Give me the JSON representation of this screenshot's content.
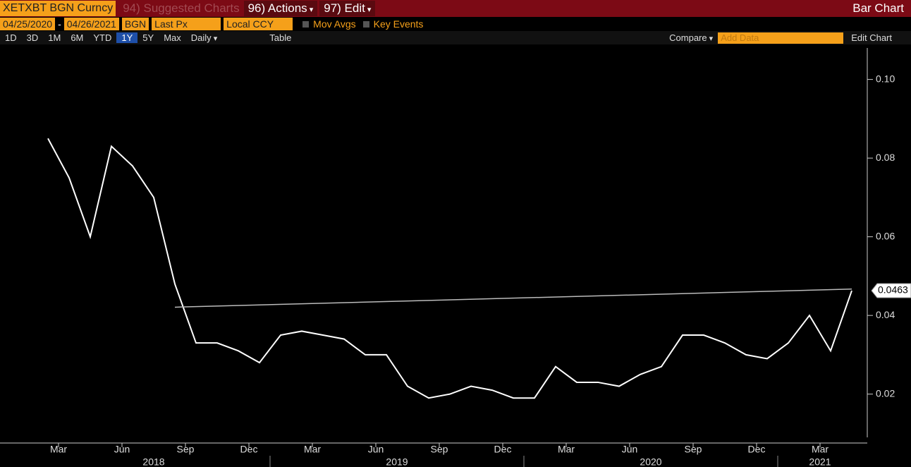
{
  "header": {
    "ticker": "XETXBT BGN Curncy",
    "suggested": "94) Suggested Charts",
    "actions": "96) Actions",
    "edit": "97) Edit",
    "chart_kind": "Bar Chart"
  },
  "settings": {
    "start_date": "04/25/2020",
    "end_date": "04/26/2021",
    "source": "BGN",
    "field": "Last Px",
    "currency": "Local CCY",
    "mov_avgs": "Mov Avgs",
    "key_events": "Key Events"
  },
  "toolbar": {
    "ranges": [
      "1D",
      "3D",
      "1M",
      "6M",
      "YTD",
      "1Y",
      "5Y",
      "Max"
    ],
    "selected": "1Y",
    "period": "Daily",
    "table": "Table",
    "compare": "Compare",
    "add_data": "Add Data",
    "edit_chart": "Edit Chart"
  },
  "chart_data": {
    "type": "line",
    "color": "#ffffff",
    "x": [
      "2018-02",
      "2018-03",
      "2018-04",
      "2018-05",
      "2018-06",
      "2018-07",
      "2018-08",
      "2018-09",
      "2018-10",
      "2018-11",
      "2018-12",
      "2019-01",
      "2019-02",
      "2019-03",
      "2019-04",
      "2019-05",
      "2019-06",
      "2019-07",
      "2019-08",
      "2019-09",
      "2019-10",
      "2019-11",
      "2019-12",
      "2020-01",
      "2020-02",
      "2020-03",
      "2020-04",
      "2020-05",
      "2020-06",
      "2020-07",
      "2020-08",
      "2020-09",
      "2020-10",
      "2020-11",
      "2020-12",
      "2021-01",
      "2021-02",
      "2021-03",
      "2021-04"
    ],
    "values": [
      0.085,
      0.075,
      0.06,
      0.083,
      0.078,
      0.07,
      0.048,
      0.033,
      0.033,
      0.031,
      0.028,
      0.035,
      0.036,
      0.035,
      0.034,
      0.03,
      0.03,
      0.022,
      0.019,
      0.02,
      0.022,
      0.021,
      0.019,
      0.019,
      0.027,
      0.023,
      0.023,
      0.022,
      0.025,
      0.027,
      0.035,
      0.035,
      0.033,
      0.03,
      0.029,
      0.033,
      0.04,
      0.031,
      0.0463
    ],
    "xticks": [
      {
        "value": "2018-03",
        "label": "Mar"
      },
      {
        "value": "2018-06",
        "label": "Jun"
      },
      {
        "value": "2018-09",
        "label": "Sep"
      },
      {
        "value": "2018-12",
        "label": "Dec"
      },
      {
        "value": "2019-03",
        "label": "Mar"
      },
      {
        "value": "2019-06",
        "label": "Jun"
      },
      {
        "value": "2019-09",
        "label": "Sep"
      },
      {
        "value": "2019-12",
        "label": "Dec"
      },
      {
        "value": "2020-03",
        "label": "Mar"
      },
      {
        "value": "2020-06",
        "label": "Jun"
      },
      {
        "value": "2020-09",
        "label": "Sep"
      },
      {
        "value": "2020-12",
        "label": "Dec"
      },
      {
        "value": "2021-03",
        "label": "Mar"
      }
    ],
    "years": [
      "2018",
      "2019",
      "2020",
      "2021"
    ],
    "ylim": [
      0.009,
      0.108
    ],
    "yticks": [
      0.02,
      0.04,
      0.06,
      0.08,
      {
        "value": 0.1,
        "label": "0.10"
      }
    ],
    "trendline": {
      "x": [
        "2018-08",
        "2021-04"
      ],
      "values": [
        0.0421,
        0.0467
      ]
    }
  }
}
